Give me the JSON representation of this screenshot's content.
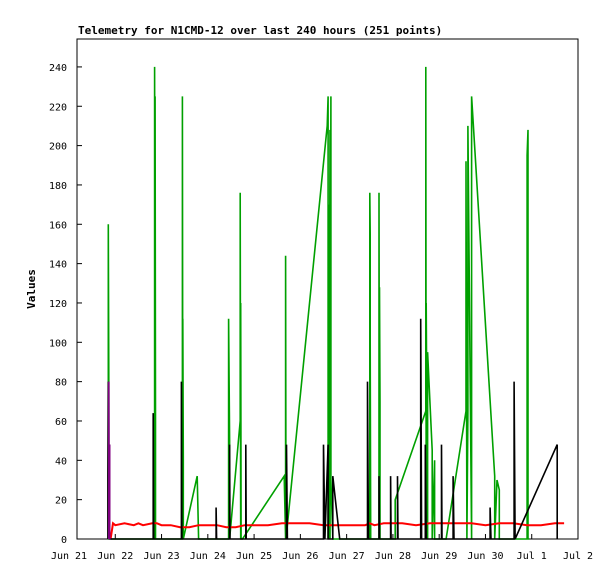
{
  "chart_data": {
    "type": "line",
    "title": "Telemetry for N1CMD-12 over last 240 hours (251 points)",
    "xlabel": "",
    "ylabel": "Values",
    "x_ticks": [
      "Jun 21",
      "Jun 22",
      "Jun 23",
      "Jun 24",
      "Jun 25",
      "Jun 26",
      "Jun 27",
      "Jun 28",
      "Jun 29",
      "Jun 30",
      "Jul 1",
      "Jul 2"
    ],
    "y_ticks": [
      0,
      20,
      40,
      60,
      80,
      100,
      120,
      140,
      160,
      180,
      200,
      220,
      240
    ],
    "xlim_days": [
      0,
      11
    ],
    "ylim": [
      0,
      255
    ],
    "grid": false,
    "colors": {
      "green": "#00a000",
      "red": "#ff0000",
      "black": "#000000",
      "purple": "#800080"
    },
    "series": [
      {
        "color": "#00a000",
        "x": [
          0.85,
          0.85,
          0.86,
          0.86,
          1.85,
          1.85,
          1.86,
          1.86,
          1.87,
          1.87,
          2.45,
          2.45,
          2.46,
          2.46,
          2.47,
          2.47,
          2.77,
          2.8,
          3.45,
          3.45,
          3.47,
          3.47,
          3.7,
          3.7,
          3.71,
          3.71,
          3.72,
          3.75,
          3.75,
          4.65,
          4.68,
          4.68,
          4.69,
          4.69,
          5.58,
          5.6,
          5.6,
          5.62,
          5.62,
          5.64,
          5.64,
          5.66,
          5.66,
          5.7,
          6.5,
          6.5,
          6.51,
          6.51,
          6.52,
          6.6,
          6.7,
          6.7,
          6.71,
          6.71,
          6.72,
          6.72,
          7.05,
          7.05,
          7.71,
          7.71,
          7.72,
          7.72,
          7.75,
          7.75,
          7.85,
          7.85,
          7.9,
          7.9,
          7.95,
          8.15,
          8.58,
          8.58,
          8.6,
          8.6,
          8.62,
          8.62,
          8.7,
          8.7,
          9.2,
          9.2,
          9.25,
          9.3,
          9.3,
          9.9,
          9.9,
          9.92,
          9.92,
          9.95
        ]
      },
      {
        "color": "#ff0000",
        "x": [
          0.9,
          0.95,
          1.0,
          1.2,
          1.4,
          1.5,
          1.6,
          1.8,
          1.9,
          2.0,
          2.2,
          2.4,
          2.6,
          2.8,
          3.0,
          3.2,
          3.4,
          3.6,
          3.8,
          4.0,
          4.3,
          4.6,
          4.9,
          5.2,
          5.5,
          5.8,
          6.1,
          6.4,
          6.5,
          6.6,
          6.8,
          7.0,
          7.2,
          7.5,
          7.8,
          8.1,
          8.4,
          8.7,
          9.0,
          9.3,
          9.6,
          9.9,
          10.2,
          10.5,
          10.7
        ]
      },
      {
        "color": "#000000",
        "x": [
          0.84,
          0.84,
          0.85,
          0.85,
          0.88,
          0.88,
          1.82,
          1.82,
          1.83,
          2.43,
          2.43,
          2.44,
          3.18,
          3.18,
          3.19,
          3.47,
          3.47,
          3.48,
          3.82,
          3.82,
          3.83,
          4.7,
          4.7,
          4.72,
          5.5,
          5.5,
          5.53,
          5.6,
          5.6,
          5.7,
          5.7,
          5.85,
          5.85,
          6.45,
          6.45,
          6.47,
          6.7,
          6.7,
          6.71,
          6.95,
          6.95,
          6.96,
          7.1,
          7.1,
          7.11,
          7.6,
          7.6,
          7.62,
          7.7,
          7.7,
          7.72,
          8.05,
          8.05,
          8.06,
          8.3,
          8.3,
          8.32,
          8.6,
          8.6,
          8.62,
          9.1,
          9.1,
          9.12,
          9.62,
          9.62,
          9.64,
          9.64,
          10.55,
          10.55
        ]
      },
      {
        "color": "#800080",
        "x": [
          0.86,
          0.86,
          0.87,
          0.87,
          0.88,
          0.88,
          0.9
        ]
      }
    ]
  }
}
